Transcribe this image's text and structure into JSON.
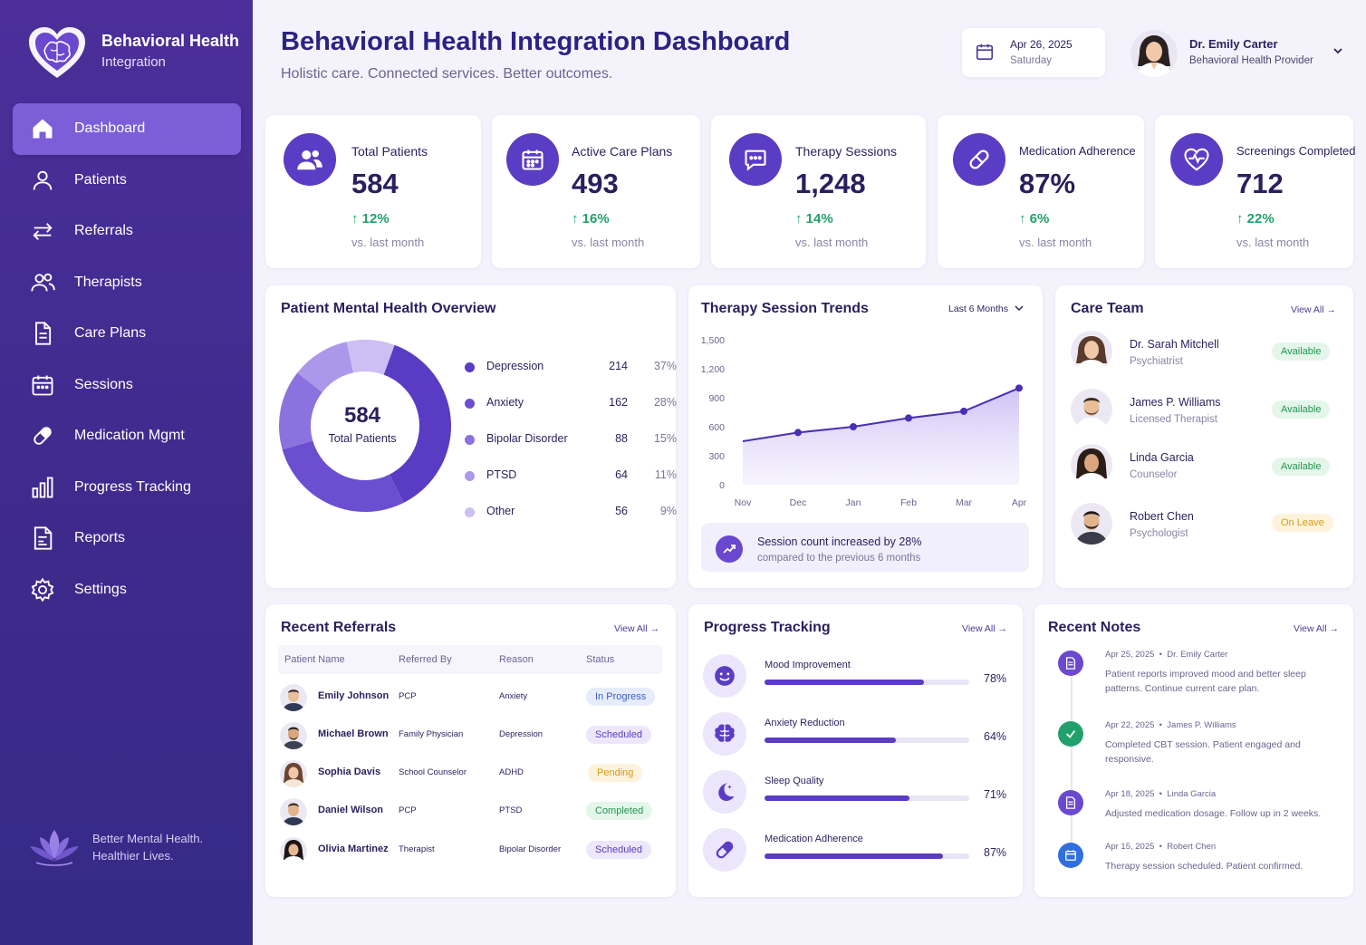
{
  "brand": {
    "title": "Behavioral Health",
    "subtitle": "Integration"
  },
  "nav": [
    {
      "label": "Dashboard",
      "icon": "home-icon",
      "active": true
    },
    {
      "label": "Patients",
      "icon": "user-icon"
    },
    {
      "label": "Referrals",
      "icon": "arrows-icon"
    },
    {
      "label": "Therapists",
      "icon": "users-icon"
    },
    {
      "label": "Care Plans",
      "icon": "document-icon"
    },
    {
      "label": "Sessions",
      "icon": "calendar-icon"
    },
    {
      "label": "Medication Mgmt",
      "icon": "pill-icon"
    },
    {
      "label": "Progress Tracking",
      "icon": "bar-chart-icon"
    },
    {
      "label": "Reports",
      "icon": "report-icon"
    },
    {
      "label": "Settings",
      "icon": "gear-icon"
    }
  ],
  "sidebar_footer": {
    "line1": "Better Mental Health.",
    "line2": "Healthier Lives."
  },
  "header": {
    "title": "Behavioral Health Integration Dashboard",
    "subtitle": "Holistic care. Connected services. Better outcomes.",
    "date": "Apr 26, 2025",
    "weekday": "Saturday",
    "user_name": "Dr. Emily Carter",
    "user_role": "Behavioral Health Provider"
  },
  "stats": [
    {
      "label": "Total Patients",
      "value": "584",
      "change": "12%",
      "note": "vs. last month",
      "icon": "users-icon"
    },
    {
      "label": "Active Care Plans",
      "value": "493",
      "change": "16%",
      "note": "vs. last month",
      "icon": "calendar-icon"
    },
    {
      "label": "Therapy Sessions",
      "value": "1,248",
      "change": "14%",
      "note": "vs. last month",
      "icon": "chat-icon"
    },
    {
      "label": "Medication Adherence",
      "value": "87%",
      "change": "6%",
      "note": "vs. last month",
      "icon": "pill-icon"
    },
    {
      "label": "Screenings Completed",
      "value": "712",
      "change": "22%",
      "note": "vs. last month",
      "icon": "heart-pulse-icon"
    }
  ],
  "overview": {
    "title": "Patient Mental Health Overview",
    "center_value": "584",
    "center_label": "Total Patients",
    "items": [
      {
        "name": "Depression",
        "count": "214",
        "pct": "37%",
        "value": 37,
        "color": "#5a3cc4"
      },
      {
        "name": "Anxiety",
        "count": "162",
        "pct": "28%",
        "value": 28,
        "color": "#6b4fd0"
      },
      {
        "name": "Bipolar Disorder",
        "count": "88",
        "pct": "15%",
        "value": 15,
        "color": "#8b72de"
      },
      {
        "name": "PTSD",
        "count": "64",
        "pct": "11%",
        "value": 11,
        "color": "#ac98ea"
      },
      {
        "name": "Other",
        "count": "56",
        "pct": "9%",
        "value": 9,
        "color": "#cdbff4"
      }
    ]
  },
  "trends": {
    "title": "Therapy Session Trends",
    "range": "Last 6 Months",
    "insight_title": "Session count increased by 28%",
    "insight_sub": "compared to the previous 6 months"
  },
  "chart_data": {
    "type": "area",
    "title": "Therapy Session Trends",
    "categories": [
      "Nov",
      "Dec",
      "Jan",
      "Feb",
      "Mar",
      "Apr"
    ],
    "series": [
      {
        "values": [
          450,
          540,
          600,
          690,
          760,
          1000
        ]
      }
    ],
    "yticks": [
      "1,500",
      "1,200",
      "900",
      "600",
      "300",
      "0"
    ],
    "ylim": [
      0,
      1500
    ],
    "grid": false
  },
  "care_team": {
    "title": "Care Team",
    "view_all": "View All",
    "members": [
      {
        "name": "Dr. Sarah Mitchell",
        "role": "Psychiatrist",
        "status": "Available",
        "status_type": "green"
      },
      {
        "name": "James P. Williams",
        "role": "Licensed Therapist",
        "status": "Available",
        "status_type": "green"
      },
      {
        "name": "Linda Garcia",
        "role": "Counselor",
        "status": "Available",
        "status_type": "green"
      },
      {
        "name": "Robert Chen",
        "role": "Psychologist",
        "status": "On Leave",
        "status_type": "amber"
      }
    ]
  },
  "referrals": {
    "title": "Recent Referrals",
    "view_all": "View All",
    "columns": [
      "Patient Name",
      "Referred By",
      "Reason",
      "Status"
    ],
    "rows": [
      {
        "name": "Emily Johnson",
        "by": "PCP",
        "reason": "Anxiety",
        "status": "In Progress",
        "status_type": "blue"
      },
      {
        "name": "Michael Brown",
        "by": "Family Physician",
        "reason": "Depression",
        "status": "Scheduled",
        "status_type": "purple"
      },
      {
        "name": "Sophia Davis",
        "by": "School Counselor",
        "reason": "ADHD",
        "status": "Pending",
        "status_type": "amber"
      },
      {
        "name": "Daniel Wilson",
        "by": "PCP",
        "reason": "PTSD",
        "status": "Completed",
        "status_type": "green"
      },
      {
        "name": "Olivia Martinez",
        "by": "Therapist",
        "reason": "Bipolar Disorder",
        "status": "Scheduled",
        "status_type": "purple"
      }
    ]
  },
  "progress": {
    "title": "Progress Tracking",
    "view_all": "View All",
    "items": [
      {
        "label": "Mood Improvement",
        "pct": "78%",
        "value": 78,
        "icon": "smile-icon"
      },
      {
        "label": "Anxiety Reduction",
        "pct": "64%",
        "value": 64,
        "icon": "brain-icon"
      },
      {
        "label": "Sleep Quality",
        "pct": "71%",
        "value": 71,
        "icon": "moon-icon"
      },
      {
        "label": "Medication Adherence",
        "pct": "87%",
        "value": 87,
        "icon": "pill-icon"
      }
    ]
  },
  "notes": {
    "title": "Recent Notes",
    "view_all": "View All",
    "items": [
      {
        "date": "Apr 25, 2025",
        "author": "Dr. Emily Carter",
        "text": "Patient reports improved mood and better sleep patterns. Continue current care plan.",
        "icon": "note-icon",
        "color": "#6a48cf"
      },
      {
        "date": "Apr 22, 2025",
        "author": "James P. Williams",
        "text": "Completed CBT session. Patient engaged and responsive.",
        "icon": "check-icon",
        "color": "#22a06b"
      },
      {
        "date": "Apr 18, 2025",
        "author": "Linda Garcia",
        "text": "Adjusted medication dosage. Follow up in 2 weeks.",
        "icon": "note-icon",
        "color": "#6a48cf"
      },
      {
        "date": "Apr 15, 2025",
        "author": "Robert Chen",
        "text": "Therapy session scheduled. Patient confirmed.",
        "icon": "calendar-icon",
        "color": "#2f6fe0"
      }
    ]
  }
}
